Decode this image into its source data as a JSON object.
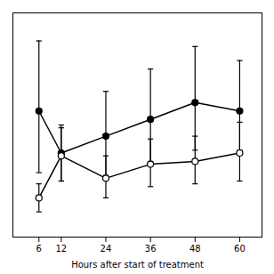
{
  "chart_data": {
    "type": "line",
    "x": [
      6,
      12,
      24,
      36,
      48,
      60
    ],
    "xlabel": "Hours after start of treatment",
    "xlim": [
      -1,
      66
    ],
    "xticks": [
      6,
      12,
      24,
      36,
      48,
      60
    ],
    "ylim": [
      0.0,
      8.0
    ],
    "tick_labels": "x",
    "grid": false,
    "series": [
      {
        "color": "#000000",
        "marker": "circle",
        "values": [
          4.5,
          3.0,
          3.6,
          4.2,
          4.8,
          4.5
        ],
        "yerr_low": [
          2.2,
          1.0,
          1.4,
          1.5,
          1.7,
          1.4
        ],
        "yerr_high": [
          2.5,
          1.0,
          1.6,
          1.8,
          2.0,
          1.8
        ]
      },
      {
        "color": "#000000",
        "marker": "open_circle",
        "values": [
          1.4,
          2.9,
          2.1,
          2.6,
          2.7,
          3.0
        ],
        "yerr_low": [
          0.5,
          0.9,
          0.7,
          0.8,
          0.8,
          1.0
        ],
        "yerr_high": [
          0.5,
          1.0,
          0.8,
          0.9,
          0.9,
          1.1
        ]
      }
    ]
  }
}
